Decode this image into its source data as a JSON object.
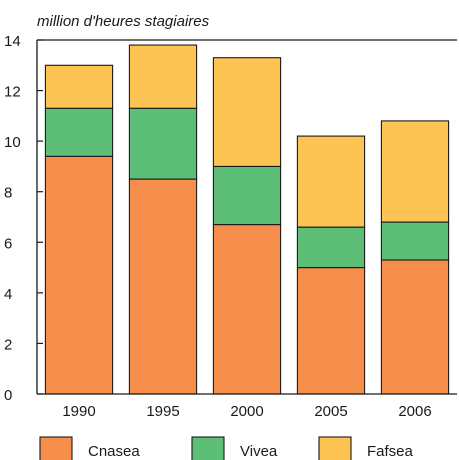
{
  "chart_data": {
    "type": "bar",
    "stacked": true,
    "ylabel": "million d'heures stagiaires",
    "ylim": [
      0,
      14
    ],
    "yticks": [
      0,
      2,
      4,
      6,
      8,
      10,
      12,
      14
    ],
    "grid": false,
    "legend_position": "bottom",
    "categories": [
      "1990",
      "1995",
      "2000",
      "2005",
      "2006"
    ],
    "series": [
      {
        "name": "Cnasea",
        "color": "#f58d4b",
        "values": [
          9.4,
          8.5,
          6.7,
          5.0,
          5.3
        ]
      },
      {
        "name": "Vivea",
        "color": "#5dbe78",
        "values": [
          1.9,
          2.8,
          2.3,
          1.6,
          1.5
        ]
      },
      {
        "name": "Fafsea",
        "color": "#fdc453",
        "values": [
          1.7,
          2.5,
          4.3,
          3.6,
          4.0
        ]
      }
    ]
  }
}
